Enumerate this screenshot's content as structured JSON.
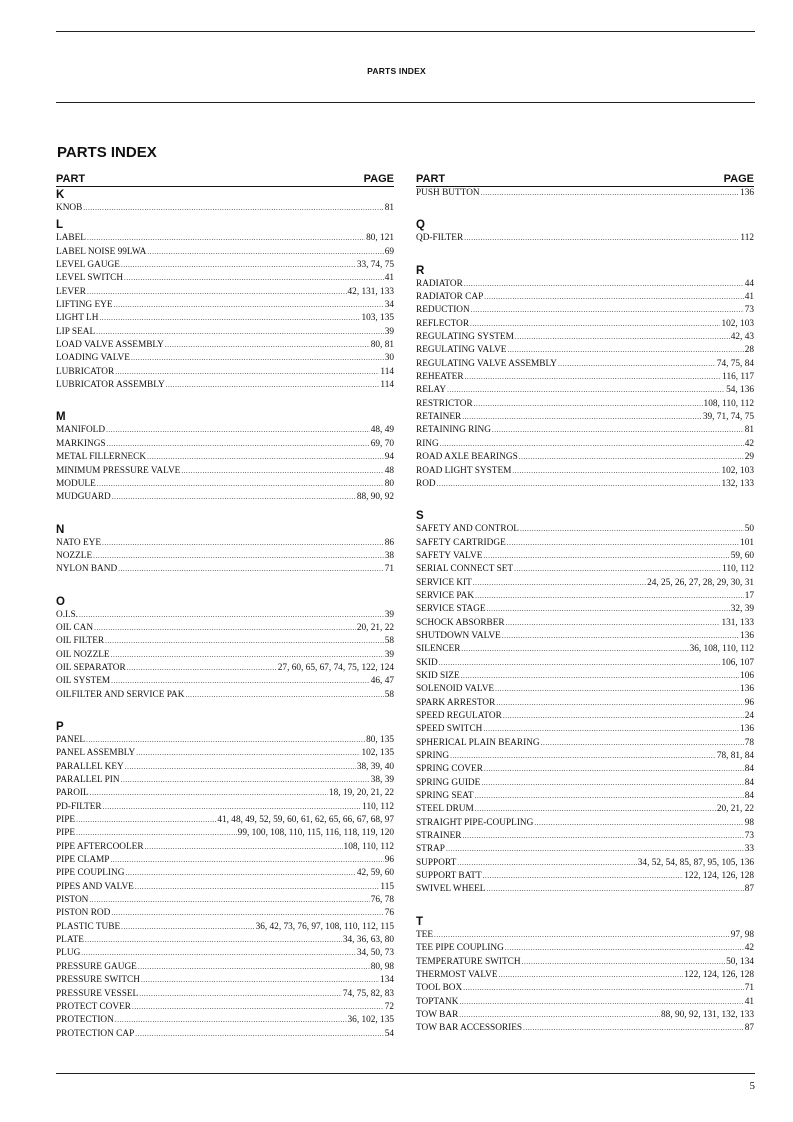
{
  "running_header": "PARTS INDEX",
  "title": "PARTS INDEX",
  "column_headers": {
    "part": "PART",
    "page": "PAGE"
  },
  "page_number": "5",
  "columns": [
    {
      "sections": [
        {
          "letter": "K",
          "items": [
            {
              "part": "KNOB",
              "page": "81"
            }
          ]
        },
        {
          "letter": "L",
          "items": [
            {
              "part": "LABEL",
              "page": "80, 121"
            },
            {
              "part": "LABEL NOISE 99LWA",
              "page": "69"
            },
            {
              "part": "LEVEL GAUGE",
              "page": "33, 74, 75"
            },
            {
              "part": "LEVEL SWITCH",
              "page": "41"
            },
            {
              "part": "LEVER",
              "page": "42, 131, 133"
            },
            {
              "part": "LIFTING EYE",
              "page": "34"
            },
            {
              "part": "LIGHT LH",
              "page": "103, 135"
            },
            {
              "part": "LIP SEAL",
              "page": "39"
            },
            {
              "part": "LOAD VALVE ASSEMBLY",
              "page": "80, 81"
            },
            {
              "part": "LOADING VALVE",
              "page": "30"
            },
            {
              "part": "LUBRICATOR",
              "page": "114"
            },
            {
              "part": "LUBRICATOR ASSEMBLY",
              "page": "114"
            }
          ]
        },
        {
          "letter": "M",
          "items": [
            {
              "part": "MANIFOLD",
              "page": "48, 49"
            },
            {
              "part": "MARKINGS",
              "page": "69, 70"
            },
            {
              "part": "METAL FILLERNECK",
              "page": "94"
            },
            {
              "part": "MINIMUM PRESSURE VALVE",
              "page": "48"
            },
            {
              "part": "MODULE",
              "page": "80"
            },
            {
              "part": "MUDGUARD",
              "page": "88, 90, 92"
            }
          ]
        },
        {
          "letter": "N",
          "items": [
            {
              "part": "NATO EYE",
              "page": "86"
            },
            {
              "part": "NOZZLE",
              "page": "38"
            },
            {
              "part": "NYLON BAND",
              "page": "71"
            }
          ]
        },
        {
          "letter": "O",
          "items": [
            {
              "part": "O.I.S.",
              "page": "39"
            },
            {
              "part": "OIL CAN",
              "page": "20, 21, 22"
            },
            {
              "part": "OIL FILTER",
              "page": "58"
            },
            {
              "part": "OIL NOZZLE",
              "page": "39"
            },
            {
              "part": "OIL SEPARATOR",
              "page": "27, 60, 65, 67, 74, 75, 122, 124"
            },
            {
              "part": "OIL SYSTEM",
              "page": "46, 47"
            },
            {
              "part": "OILFILTER AND SERVICE PAK",
              "page": "58"
            }
          ]
        },
        {
          "letter": "P",
          "items": [
            {
              "part": "PANEL",
              "page": "80, 135"
            },
            {
              "part": "PANEL ASSEMBLY",
              "page": "102, 135"
            },
            {
              "part": "PARALLEL KEY",
              "page": "38, 39, 40"
            },
            {
              "part": "PARALLEL PIN",
              "page": "38, 39"
            },
            {
              "part": "PAROIL",
              "page": "18, 19, 20, 21, 22"
            },
            {
              "part": "PD-FILTER",
              "page": "110, 112"
            },
            {
              "part": "PIPE",
              "page": "41, 48, 49, 52, 59, 60, 61, 62, 65, 66, 67, 68, 97"
            },
            {
              "part": "PIPE",
              "page": "99, 100, 108, 110, 115, 116, 118, 119, 120"
            },
            {
              "part": "PIPE AFTERCOOLER",
              "page": "108, 110, 112"
            },
            {
              "part": "PIPE CLAMP",
              "page": "96"
            },
            {
              "part": "PIPE COUPLING",
              "page": "42, 59, 60"
            },
            {
              "part": "PIPES AND VALVE",
              "page": "115"
            },
            {
              "part": "PISTON",
              "page": "76, 78"
            },
            {
              "part": "PISTON ROD",
              "page": "76"
            },
            {
              "part": "PLASTIC TUBE",
              "page": "36, 42, 73, 76, 97, 108, 110, 112, 115"
            },
            {
              "part": "PLATE",
              "page": "34, 36, 63, 80"
            },
            {
              "part": "PLUG",
              "page": "34, 50, 73"
            },
            {
              "part": "PRESSURE GAUGE",
              "page": "80, 98"
            },
            {
              "part": "PRESSURE SWITCH",
              "page": "134"
            },
            {
              "part": "PRESSURE VESSEL",
              "page": "74, 75, 82, 83"
            },
            {
              "part": "PROTECT COVER",
              "page": "72"
            },
            {
              "part": "PROTECTION",
              "page": "36, 102, 135"
            },
            {
              "part": "PROTECTION CAP",
              "page": "54"
            }
          ]
        }
      ]
    },
    {
      "sections": [
        {
          "letter": "",
          "items": [
            {
              "part": "PUSH BUTTON",
              "page": "136"
            }
          ]
        },
        {
          "letter": "Q",
          "items": [
            {
              "part": "QD-FILTER",
              "page": "112"
            }
          ]
        },
        {
          "letter": "R",
          "items": [
            {
              "part": "RADIATOR",
              "page": "44"
            },
            {
              "part": "RADIATOR CAP",
              "page": "41"
            },
            {
              "part": "REDUCTION",
              "page": "73"
            },
            {
              "part": "REFLECTOR",
              "page": "102, 103"
            },
            {
              "part": "REGULATING SYSTEM",
              "page": "42, 43"
            },
            {
              "part": "REGULATING VALVE",
              "page": "28"
            },
            {
              "part": "REGULATING VALVE ASSEMBLY",
              "page": "74, 75, 84"
            },
            {
              "part": "REHEATER",
              "page": "116, 117"
            },
            {
              "part": "RELAY",
              "page": "54, 136"
            },
            {
              "part": "RESTRICTOR",
              "page": "108, 110, 112"
            },
            {
              "part": "RETAINER",
              "page": "39, 71, 74, 75"
            },
            {
              "part": "RETAINING RING",
              "page": "81"
            },
            {
              "part": "RING",
              "page": "42"
            },
            {
              "part": "ROAD AXLE BEARINGS",
              "page": "29"
            },
            {
              "part": "ROAD LIGHT SYSTEM",
              "page": "102, 103"
            },
            {
              "part": "ROD",
              "page": "132, 133"
            }
          ]
        },
        {
          "letter": "S",
          "items": [
            {
              "part": "SAFETY AND CONTROL",
              "page": "50"
            },
            {
              "part": "SAFETY CARTRIDGE",
              "page": "101"
            },
            {
              "part": "SAFETY VALVE",
              "page": "59, 60"
            },
            {
              "part": "SERIAL CONNECT SET",
              "page": "110, 112"
            },
            {
              "part": "SERVICE KIT",
              "page": "24, 25, 26, 27, 28, 29, 30, 31"
            },
            {
              "part": "SERVICE PAK",
              "page": "17"
            },
            {
              "part": "SERVICE STAGE",
              "page": "32, 39"
            },
            {
              "part": "SCHOCK ABSORBER",
              "page": "131, 133"
            },
            {
              "part": "SHUTDOWN VALVE",
              "page": "136"
            },
            {
              "part": "SILENCER",
              "page": "36, 108, 110, 112"
            },
            {
              "part": "SKID",
              "page": "106, 107"
            },
            {
              "part": "SKID SIZE",
              "page": "106"
            },
            {
              "part": "SOLENOID VALVE",
              "page": "136"
            },
            {
              "part": "SPARK ARRESTOR",
              "page": "96"
            },
            {
              "part": "SPEED REGULATOR",
              "page": "24"
            },
            {
              "part": "SPEED SWITCH",
              "page": "136"
            },
            {
              "part": "SPHERICAL PLAIN BEARING",
              "page": "78"
            },
            {
              "part": "SPRING",
              "page": "78, 81, 84"
            },
            {
              "part": "SPRING COVER",
              "page": "84"
            },
            {
              "part": "SPRING GUIDE",
              "page": "84"
            },
            {
              "part": "SPRING SEAT",
              "page": "84"
            },
            {
              "part": "STEEL DRUM",
              "page": "20, 21, 22"
            },
            {
              "part": "STRAIGHT PIPE-COUPLING",
              "page": "98"
            },
            {
              "part": "STRAINER",
              "page": "73"
            },
            {
              "part": "STRAP",
              "page": "33"
            },
            {
              "part": "SUPPORT",
              "page": "34, 52, 54, 85, 87, 95, 105, 136"
            },
            {
              "part": "SUPPORT BATT",
              "page": "122, 124, 126, 128"
            },
            {
              "part": "SWIVEL WHEEL",
              "page": "87"
            }
          ]
        },
        {
          "letter": "T",
          "items": [
            {
              "part": "TEE",
              "page": "97, 98"
            },
            {
              "part": "TEE PIPE COUPLING",
              "page": "42"
            },
            {
              "part": "TEMPERATURE SWITCH",
              "page": "50, 134"
            },
            {
              "part": "THERMOST VALVE",
              "page": "122, 124, 126, 128"
            },
            {
              "part": "TOOL BOX",
              "page": "71"
            },
            {
              "part": "TOPTANK",
              "page": "41"
            },
            {
              "part": "TOW BAR",
              "page": "88, 90, 92, 131, 132, 133"
            },
            {
              "part": "TOW BAR ACCESSORIES",
              "page": "87"
            }
          ]
        }
      ]
    }
  ]
}
